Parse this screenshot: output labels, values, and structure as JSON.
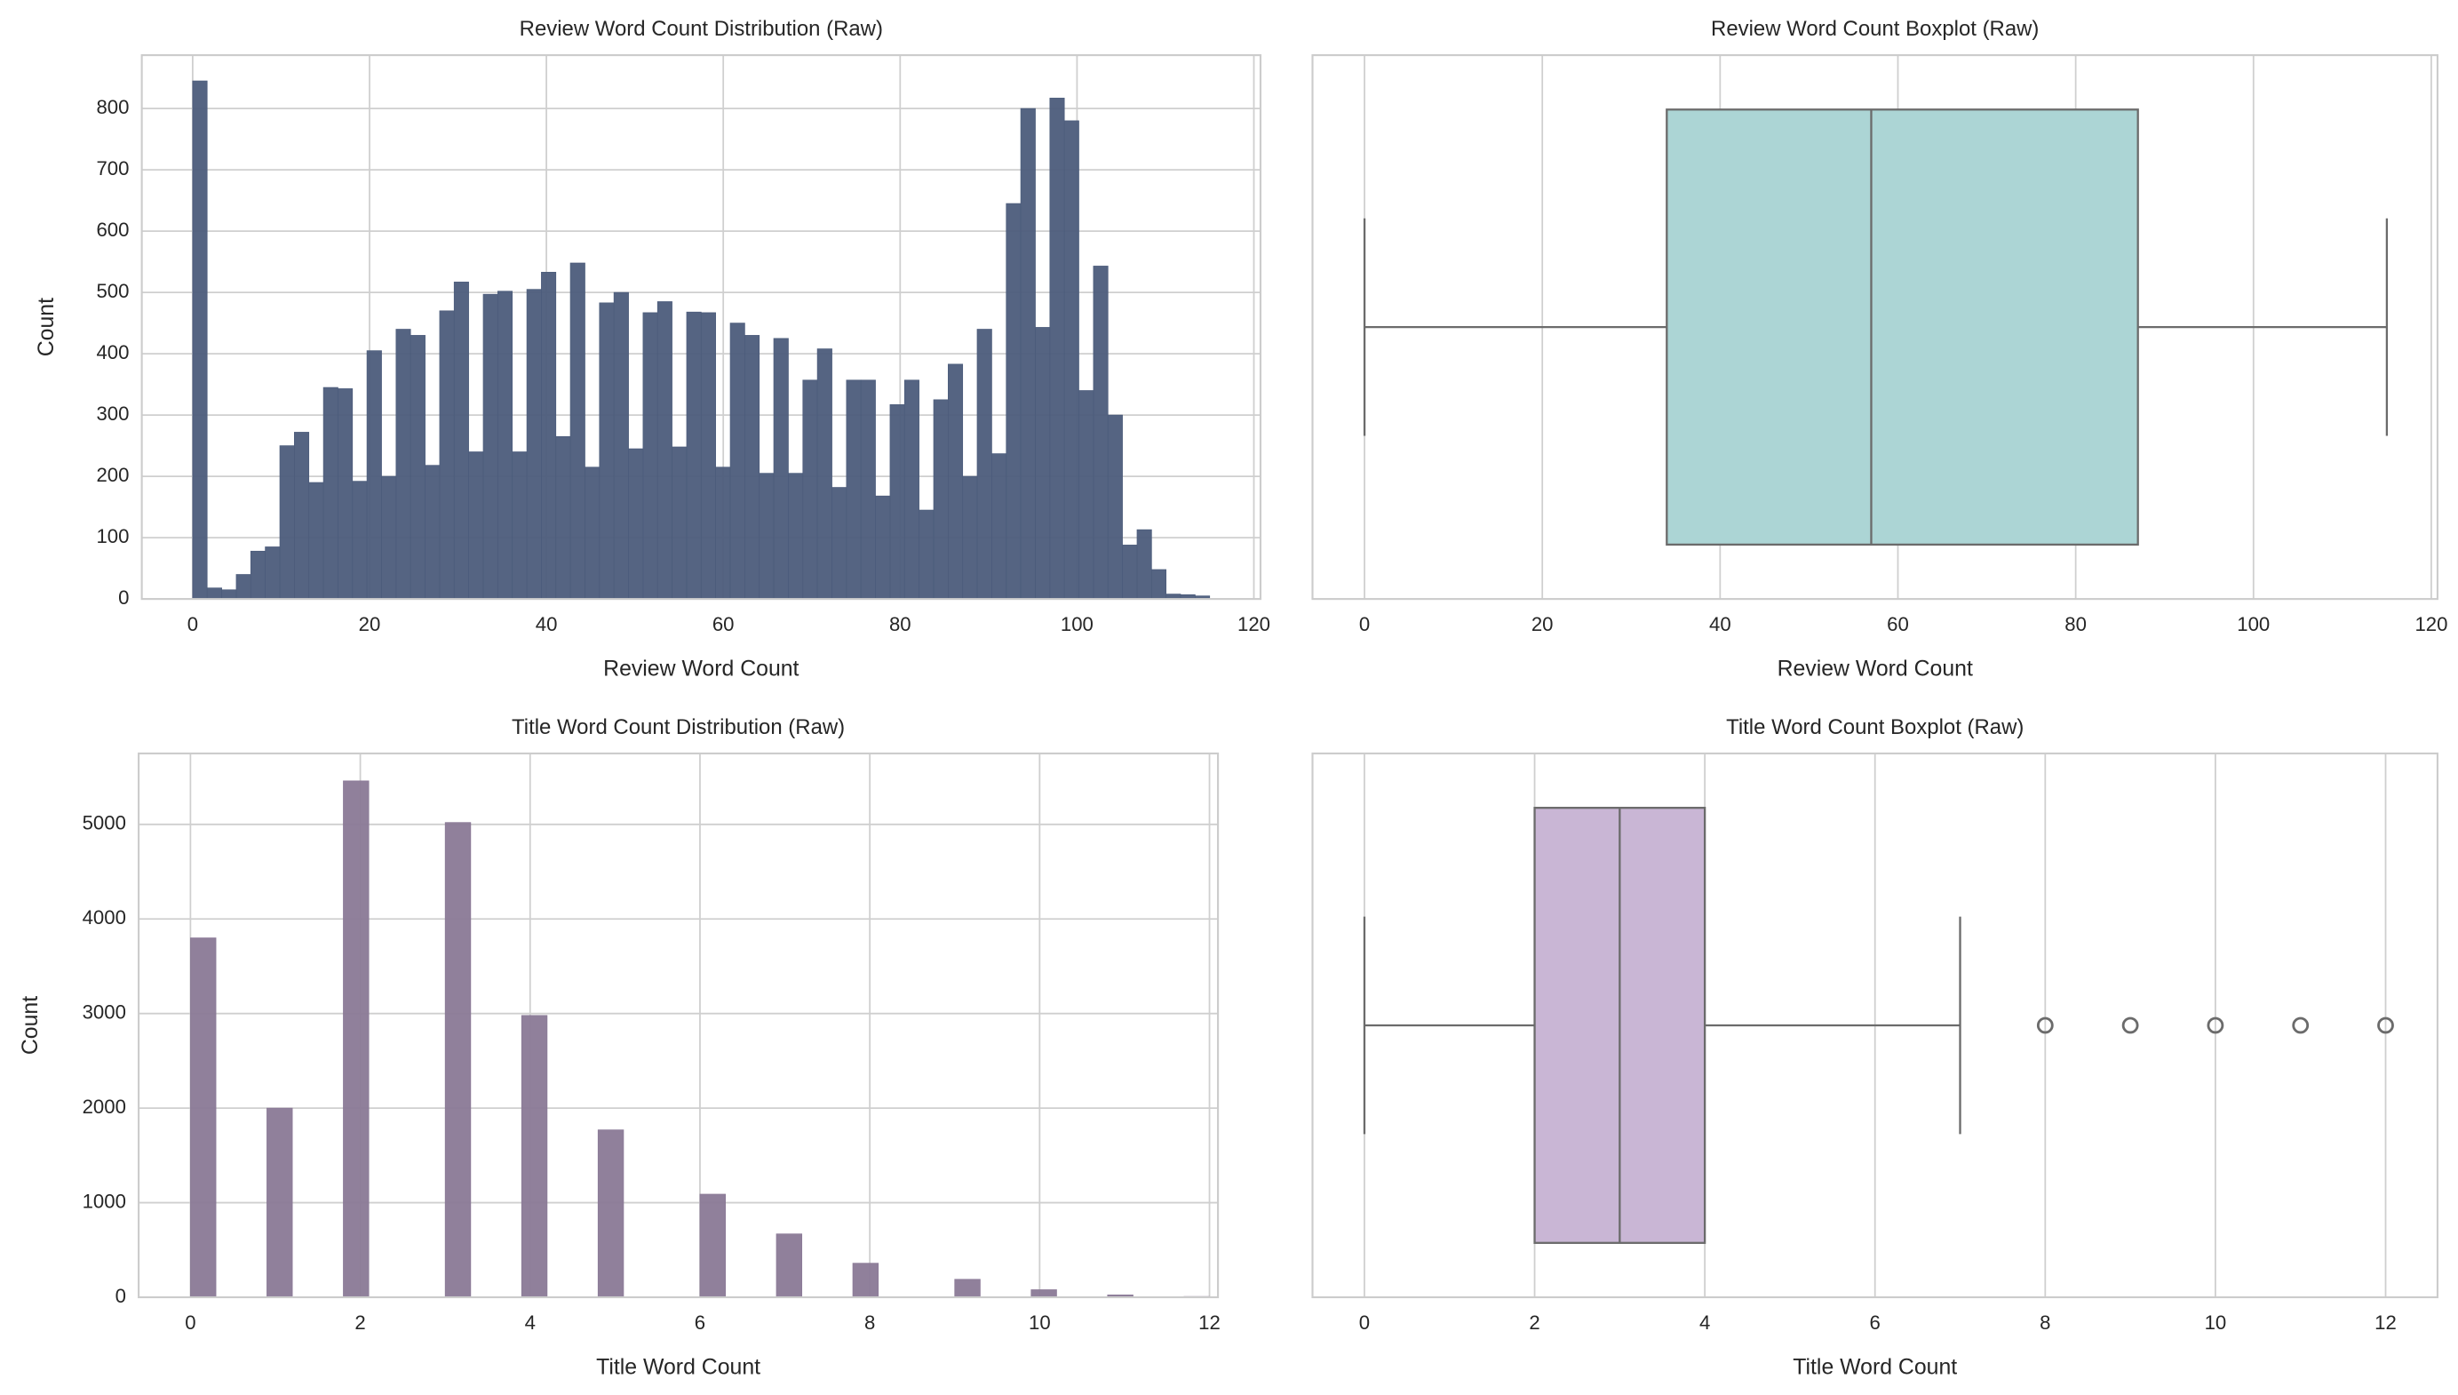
{
  "chart_data": [
    {
      "type": "histogram",
      "title": "Review Word Count Distribution (Raw)",
      "xlabel": "Review Word Count",
      "ylabel": "Count",
      "bins": [
        0,
        1.64,
        3.29,
        4.93,
        6.57,
        8.21,
        9.86,
        11.5,
        13.14,
        14.79,
        16.43,
        18.07,
        19.71,
        21.36,
        23,
        24.64,
        26.29,
        27.93,
        29.57,
        31.21,
        32.86,
        34.5,
        36.14,
        37.79,
        39.43,
        41.07,
        42.71,
        44.36,
        46,
        47.64,
        49.29,
        50.93,
        52.57,
        54.21,
        55.86,
        57.5,
        59.14,
        60.79,
        62.43,
        64.07,
        65.71,
        67.36,
        69,
        70.64,
        72.29,
        73.93,
        75.57,
        77.21,
        78.86,
        80.5,
        82.14,
        83.79,
        85.43,
        87.07,
        88.71,
        90.36,
        92,
        93.64,
        95.29,
        96.93,
        98.57,
        100.21,
        101.86,
        103.5,
        105.14,
        106.79,
        108.43,
        110.07,
        111.71,
        113.36,
        115
      ],
      "values": [
        845,
        18,
        15,
        40,
        78,
        85,
        250,
        272,
        190,
        345,
        343,
        192,
        405,
        200,
        440,
        430,
        218,
        470,
        517,
        240,
        497,
        502,
        240,
        505,
        533,
        265,
        548,
        215,
        483,
        500,
        245,
        467,
        485,
        248,
        468,
        467,
        215,
        450,
        430,
        205,
        425,
        205,
        357,
        408,
        182,
        357,
        357,
        168,
        317,
        357,
        145,
        325,
        383,
        200,
        440,
        237,
        645,
        800,
        443,
        817,
        780,
        340,
        543,
        300,
        88,
        113,
        48,
        8,
        7,
        5
      ],
      "color": "#4c5c7b",
      "xlim": [
        -5.75,
        120.75
      ],
      "ylim": [
        0,
        887
      ],
      "xticks": [
        0,
        20,
        40,
        60,
        80,
        100,
        120
      ],
      "yticks": [
        0,
        100,
        200,
        300,
        400,
        500,
        600,
        700,
        800
      ],
      "grid": true
    },
    {
      "type": "boxplot",
      "title": "Review Word Count Boxplot (Raw)",
      "xlabel": "Review Word Count",
      "stats": {
        "min": 0,
        "q1": 34,
        "median": 57,
        "q3": 87,
        "max": 115,
        "outliers": []
      },
      "color": "#acd5d5",
      "xlim": [
        -5.85,
        120.7
      ],
      "xticks": [
        0,
        20,
        40,
        60,
        80,
        100,
        120
      ],
      "grid": true
    },
    {
      "type": "histogram",
      "title": "Title Word Count Distribution (Raw)",
      "xlabel": "Title Word Count",
      "ylabel": "Count",
      "bins": [
        0,
        0.3,
        0.6,
        0.9,
        1.2,
        1.5,
        1.8,
        2.1,
        2.4,
        2.7,
        3,
        3.3,
        3.6,
        3.9,
        4.2,
        4.5,
        4.8,
        5.1,
        5.4,
        5.7,
        6,
        6.3,
        6.6,
        6.9,
        7.2,
        7.5,
        7.8,
        8.1,
        8.4,
        8.7,
        9,
        9.3,
        9.6,
        9.9,
        10.2,
        10.5,
        10.8,
        11.1,
        11.4,
        11.7,
        12
      ],
      "values": [
        3800,
        0,
        0,
        2000,
        0,
        0,
        5460,
        0,
        0,
        0,
        5020,
        0,
        0,
        2980,
        0,
        0,
        1770,
        0,
        0,
        0,
        1090,
        0,
        0,
        670,
        0,
        0,
        360,
        0,
        0,
        0,
        190,
        0,
        0,
        80,
        0,
        0,
        25,
        0,
        0,
        8
      ],
      "color": "#8a7996",
      "xlim": [
        -0.61,
        12.1
      ],
      "ylim": [
        0,
        5750
      ],
      "xticks": [
        0,
        2,
        4,
        6,
        8,
        10,
        12
      ],
      "yticks": [
        0,
        1000,
        2000,
        3000,
        4000,
        5000
      ],
      "grid": true
    },
    {
      "type": "boxplot",
      "title": "Title Word Count Boxplot (Raw)",
      "xlabel": "Title Word Count",
      "stats": {
        "min": 0,
        "q1": 2,
        "median": 3,
        "q3": 4,
        "max": 7,
        "outliers": [
          8,
          9,
          10,
          11,
          12
        ]
      },
      "color": "#c9b6d5",
      "xlim": [
        -0.61,
        12.61
      ],
      "xticks": [
        0,
        2,
        4,
        6,
        8,
        10,
        12
      ],
      "grid": true
    }
  ]
}
